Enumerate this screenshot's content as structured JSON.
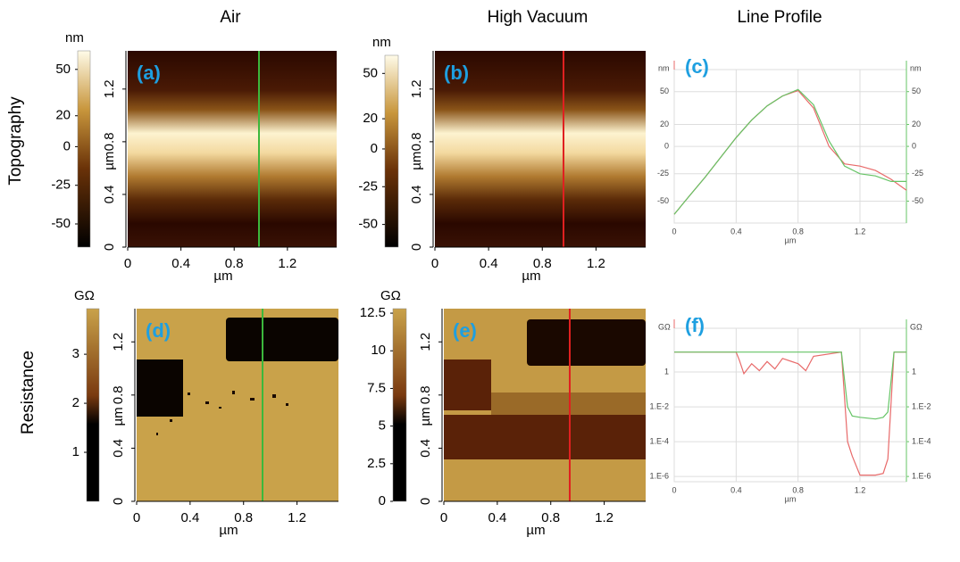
{
  "columns": [
    "Air",
    "High Vacuum",
    "Line Profile"
  ],
  "rows": [
    "Topography",
    "Resistance"
  ],
  "images": [
    {
      "label": "(a)",
      "unit": "nm",
      "cbar_lim": [
        -65,
        62
      ],
      "cbar_ticks": [
        -50,
        -25,
        0,
        20,
        50
      ],
      "xlim": [
        0,
        1.57
      ],
      "xticks": [
        0,
        0.4,
        0.8,
        1.2
      ],
      "ylim": [
        0,
        1.49
      ],
      "yticks": [
        0,
        0.4,
        0.8,
        1.2
      ],
      "xlabel": "µm",
      "ylabel": "µm"
    },
    {
      "label": "(b)",
      "unit": "nm",
      "cbar_lim": [
        -65,
        62
      ],
      "cbar_ticks": [
        -50,
        -25,
        0,
        20,
        50
      ],
      "xlim": [
        0,
        1.57
      ],
      "xticks": [
        0,
        0.4,
        0.8,
        1.2
      ],
      "ylim": [
        0,
        1.49
      ],
      "yticks": [
        0,
        0.4,
        0.8,
        1.2
      ],
      "xlabel": "µm",
      "ylabel": "µm"
    },
    {
      "label": "(d)",
      "unit": "GΩ",
      "cbar_lim": [
        0,
        3.93
      ],
      "cbar_ticks": [
        1,
        2,
        3
      ],
      "xlim": [
        0,
        1.51
      ],
      "xticks": [
        0,
        0.4,
        0.8,
        1.2
      ],
      "ylim": [
        0,
        1.45
      ],
      "yticks": [
        0,
        0.4,
        0.8,
        1.2
      ],
      "xlabel": "µm",
      "ylabel": "µm"
    },
    {
      "label": "(e)",
      "unit": "GΩ",
      "cbar_lim": [
        0,
        12.8
      ],
      "cbar_ticks": [
        0,
        2.5,
        5,
        7.5,
        10,
        12.5
      ],
      "xlim": [
        0,
        1.51
      ],
      "xticks": [
        0,
        0.4,
        0.8,
        1.2
      ],
      "ylim": [
        0,
        1.45
      ],
      "yticks": [
        0,
        0.4,
        0.8,
        1.2
      ],
      "xlabel": "µm",
      "ylabel": "µm"
    }
  ],
  "chart_data": [
    {
      "type": "line",
      "label": "(c)",
      "yunit": "nm",
      "y2unit": "nm",
      "xlabel": "µm",
      "x": [
        0,
        0.1,
        0.2,
        0.3,
        0.4,
        0.5,
        0.6,
        0.7,
        0.8,
        0.9,
        1.0,
        1.1,
        1.2,
        1.3,
        1.4,
        1.5
      ],
      "series": [
        {
          "color": "#e86a6a",
          "values": [
            -62,
            -45,
            -28,
            -10,
            8,
            24,
            37,
            46,
            51,
            35,
            0,
            -16,
            -18,
            -22,
            -30,
            -40
          ]
        },
        {
          "color": "#66c466",
          "values": [
            -62,
            -45,
            -28,
            -10,
            8,
            24,
            37,
            46,
            52,
            38,
            5,
            -18,
            -25,
            -27,
            -32,
            -32
          ]
        }
      ],
      "xlim": [
        0,
        1.5
      ],
      "xticks": [
        0,
        0.4,
        0.8,
        1.2
      ],
      "ylim": [
        -70,
        62
      ],
      "yticks": [
        50,
        20,
        0,
        -25,
        -50
      ],
      "y2lim": [
        -70,
        62
      ],
      "y2ticks": [
        50,
        20,
        0,
        -25,
        -50
      ],
      "grid": true,
      "log": false
    },
    {
      "type": "line",
      "label": "(f)",
      "yunit": "GΩ",
      "y2unit": "GΩ",
      "xlabel": "µm",
      "x": [
        0,
        0.4,
        0.42,
        0.45,
        0.5,
        0.55,
        0.6,
        0.65,
        0.7,
        0.8,
        0.85,
        0.9,
        1.08,
        1.12,
        1.15,
        1.2,
        1.3,
        1.35,
        1.38,
        1.42,
        1.45,
        1.5
      ],
      "series": [
        {
          "color": "#e86a6a",
          "values": [
            14,
            14,
            5,
            0.8,
            3,
            1.2,
            4,
            1.5,
            6,
            3,
            1.2,
            8,
            14,
            0.0001,
            1.5e-05,
            1.2e-06,
            1.2e-06,
            1.5e-06,
            1e-05,
            14,
            14,
            14
          ]
        },
        {
          "color": "#66c466",
          "values": [
            14,
            14,
            14,
            14,
            14,
            14,
            14,
            14,
            14,
            14,
            14,
            14,
            14,
            0.01,
            0.003,
            0.0025,
            0.002,
            0.0025,
            0.005,
            14,
            14,
            14
          ]
        }
      ],
      "xlim": [
        0,
        1.5
      ],
      "xticks": [
        0,
        0.4,
        0.8,
        1.2
      ],
      "ylim": [
        5e-07,
        100
      ],
      "yticks": [
        1,
        {
          "value": 0.01,
          "label": "1.E-2"
        },
        {
          "value": 0.0001,
          "label": "1.E-4"
        },
        {
          "value": 1e-06,
          "label": "1.E-6"
        }
      ],
      "y2lim": [
        5e-07,
        100
      ],
      "y2ticks": [
        1,
        {
          "value": 0.01,
          "label": "1.E-2"
        },
        {
          "value": 0.0001,
          "label": "1.E-4"
        },
        {
          "value": 1e-06,
          "label": "1.E-6"
        }
      ],
      "grid": true,
      "log": true
    }
  ]
}
